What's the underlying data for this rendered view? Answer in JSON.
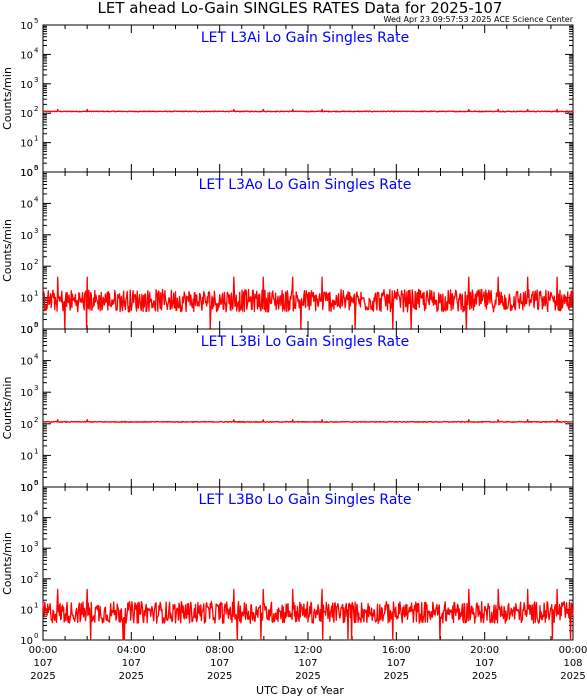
{
  "title": "LET ahead Lo-Gain SINGLES RATES Data for 2025-107",
  "timestamp": "Wed Apr 23 09:57:53 2025 ACE Science Center",
  "colors": {
    "series": "#ff0000",
    "panel_title": "#0000ff",
    "axes": "#000000"
  },
  "xaxis": {
    "label": "UTC Day of Year",
    "ticks": [
      {
        "time": "00:00",
        "day": "107",
        "year": "2025"
      },
      {
        "time": "04:00",
        "day": "107",
        "year": "2025"
      },
      {
        "time": "08:00",
        "day": "107",
        "year": "2025"
      },
      {
        "time": "12:00",
        "day": "107",
        "year": "2025"
      },
      {
        "time": "16:00",
        "day": "107",
        "year": "2025"
      },
      {
        "time": "20:00",
        "day": "107",
        "year": "2025"
      },
      {
        "time": "00:00",
        "day": "108",
        "year": "2025"
      }
    ]
  },
  "chart_data": [
    {
      "type": "line",
      "title": "LET L3Ai Lo Gain Singles Rate",
      "ylabel": "Counts/min",
      "yscale": "log",
      "ylim": [
        1,
        100000
      ],
      "xlim": [
        "2025-107 00:00",
        "2025-108 00:00"
      ],
      "series": [
        {
          "values": {
            "baseline": 115,
            "periodic_spike": 135,
            "spike_period_hours": 1.33,
            "noise": "low"
          }
        }
      ]
    },
    {
      "type": "line",
      "title": "LET L3Ao Lo Gain Singles Rate",
      "ylabel": "Counts/min",
      "yscale": "log",
      "ylim": [
        1,
        100000
      ],
      "xlim": [
        "2025-107 00:00",
        "2025-108 00:00"
      ],
      "series": [
        {
          "values": {
            "baseline": 8,
            "periodic_spike": 45,
            "spike_period_hours": 1.33,
            "noise": "high",
            "min": 1
          }
        }
      ]
    },
    {
      "type": "line",
      "title": "LET L3Bi Lo Gain Singles Rate",
      "ylabel": "Counts/min",
      "yscale": "log",
      "ylim": [
        1,
        100000
      ],
      "xlim": [
        "2025-107 00:00",
        "2025-108 00:00"
      ],
      "series": [
        {
          "values": {
            "baseline": 115,
            "periodic_spike": 135,
            "spike_period_hours": 1.33,
            "noise": "low"
          }
        }
      ]
    },
    {
      "type": "line",
      "title": "LET L3Bo Lo Gain Singles Rate",
      "ylabel": "Counts/min",
      "yscale": "log",
      "ylim": [
        1,
        100000
      ],
      "xlim": [
        "2025-107 00:00",
        "2025-108 00:00"
      ],
      "series": [
        {
          "values": {
            "baseline": 8,
            "periodic_spike": 45,
            "spike_period_hours": 1.33,
            "noise": "high",
            "min": 1
          }
        }
      ]
    }
  ]
}
